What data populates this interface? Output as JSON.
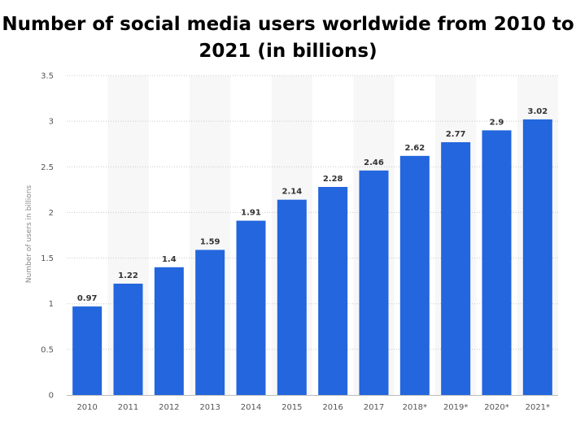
{
  "chart_data": {
    "type": "bar",
    "title": "Number of social media users worldwide from 2010 to 2021 (in billions)",
    "xlabel": "",
    "ylabel": "Number of users in billions",
    "categories": [
      "2010",
      "2011",
      "2012",
      "2013",
      "2014",
      "2015",
      "2016",
      "2017",
      "2018*",
      "2019*",
      "2020*",
      "2021*"
    ],
    "values": [
      0.97,
      1.22,
      1.4,
      1.59,
      1.91,
      2.14,
      2.28,
      2.46,
      2.62,
      2.77,
      2.9,
      3.02
    ],
    "value_labels": [
      "0.97",
      "1.22",
      "1.4",
      "1.59",
      "1.91",
      "2.14",
      "2.28",
      "2.46",
      "2.62",
      "2.77",
      "2.9",
      "3.02"
    ],
    "ylim": [
      0,
      3.5
    ],
    "yticks": [
      0,
      0.5,
      1,
      1.5,
      2,
      2.5,
      3,
      3.5
    ],
    "ytick_labels": [
      "0",
      "0.5",
      "1",
      "1.5",
      "2",
      "2.5",
      "3",
      "3.5"
    ],
    "grid": true,
    "bar_color": "#2366dd",
    "band_color": "#f7f7f7",
    "grid_color": "#c8c8c8"
  }
}
